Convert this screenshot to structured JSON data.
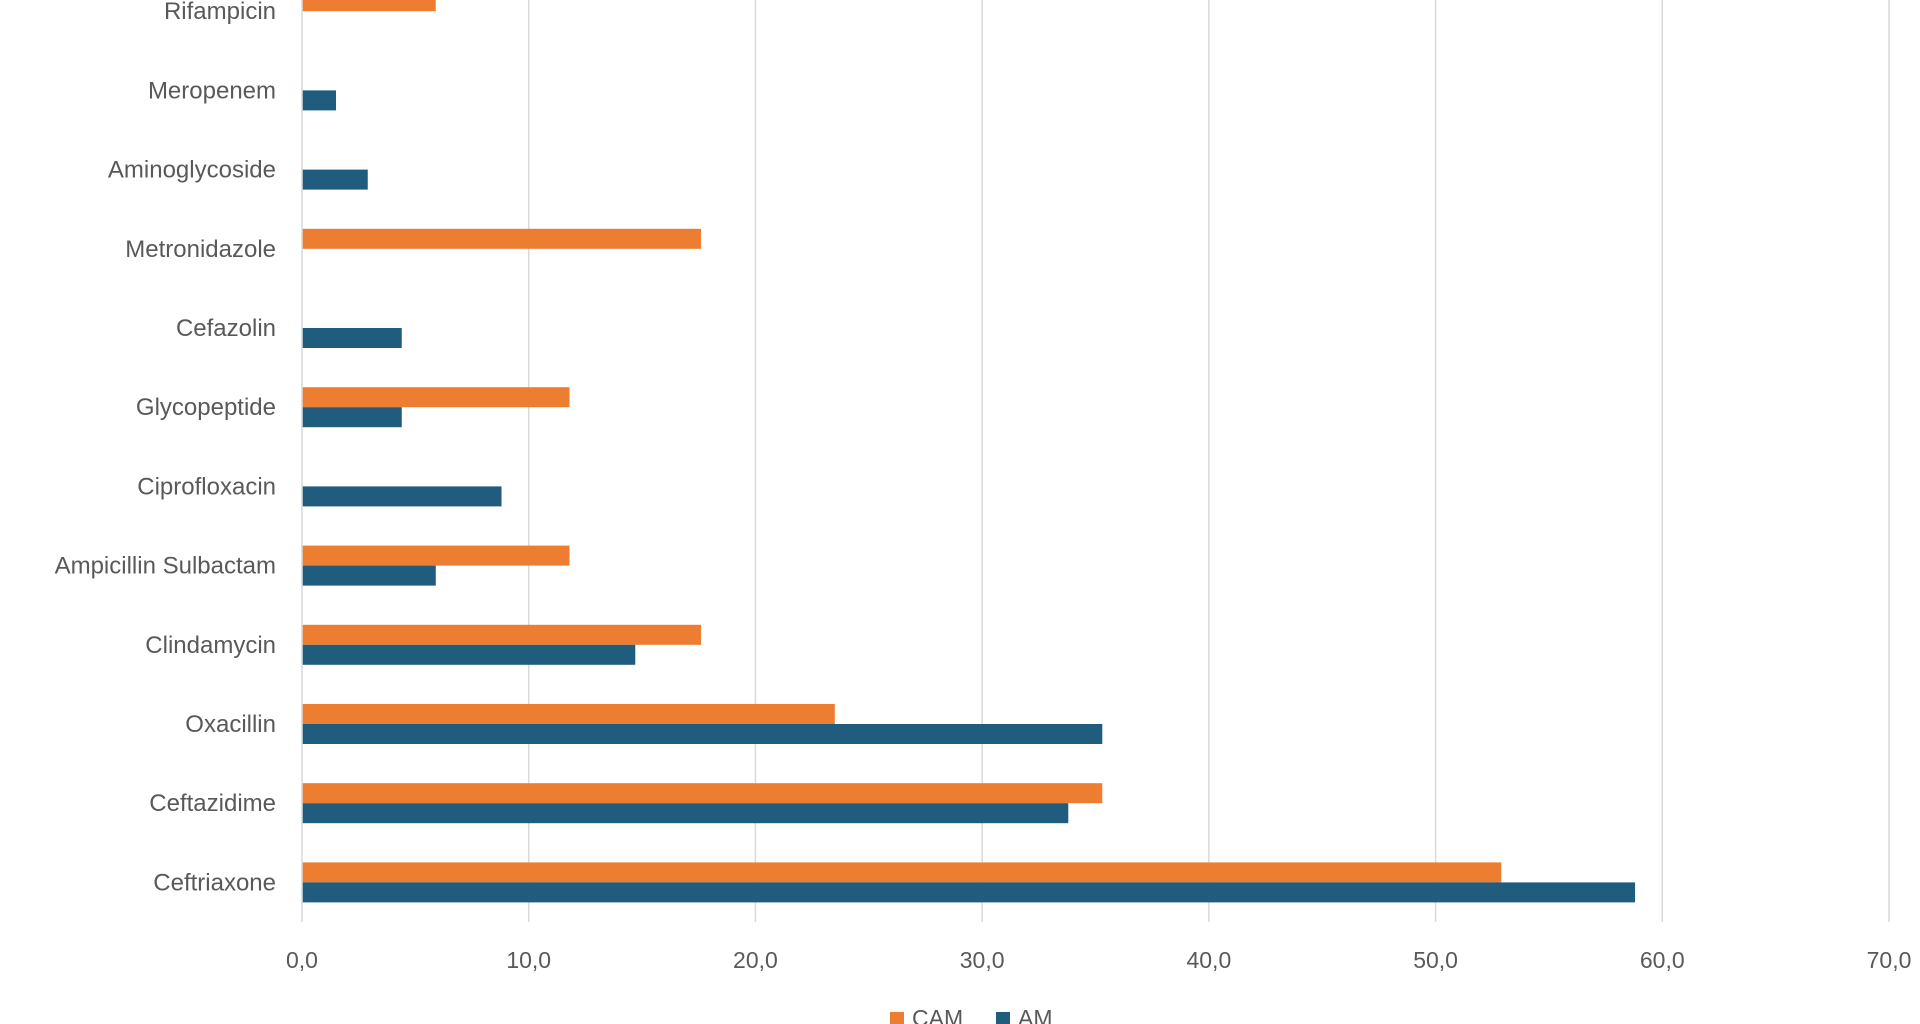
{
  "chart_data": {
    "type": "bar",
    "orientation": "horizontal",
    "categories": [
      "Ceftriaxone",
      "Ceftazidime",
      "Oxacillin",
      "Clindamycin",
      "Ampicillin   Sulbactam",
      "Ciprofloxacin",
      "Glycopeptide",
      "Cefazolin",
      "Metronidazole",
      "Aminoglycoside",
      "Meropenem",
      "Rifampicin"
    ],
    "series": [
      {
        "name": "CAM",
        "color": "#ED7D31",
        "values": [
          52.9,
          35.3,
          23.5,
          17.6,
          11.8,
          0,
          11.8,
          0,
          17.6,
          0,
          0,
          5.9
        ]
      },
      {
        "name": "AM",
        "color": "#1F5C7E",
        "values": [
          58.8,
          33.8,
          35.3,
          14.7,
          5.9,
          8.8,
          4.4,
          4.4,
          0,
          2.9,
          1.5,
          0
        ]
      }
    ],
    "xlim": [
      0,
      70
    ],
    "xticks": [
      "0,0",
      "10,0",
      "20,0",
      "30,0",
      "40,0",
      "50,0",
      "60,0",
      "70,0"
    ],
    "grid": "vertical",
    "legend": "bottom"
  }
}
